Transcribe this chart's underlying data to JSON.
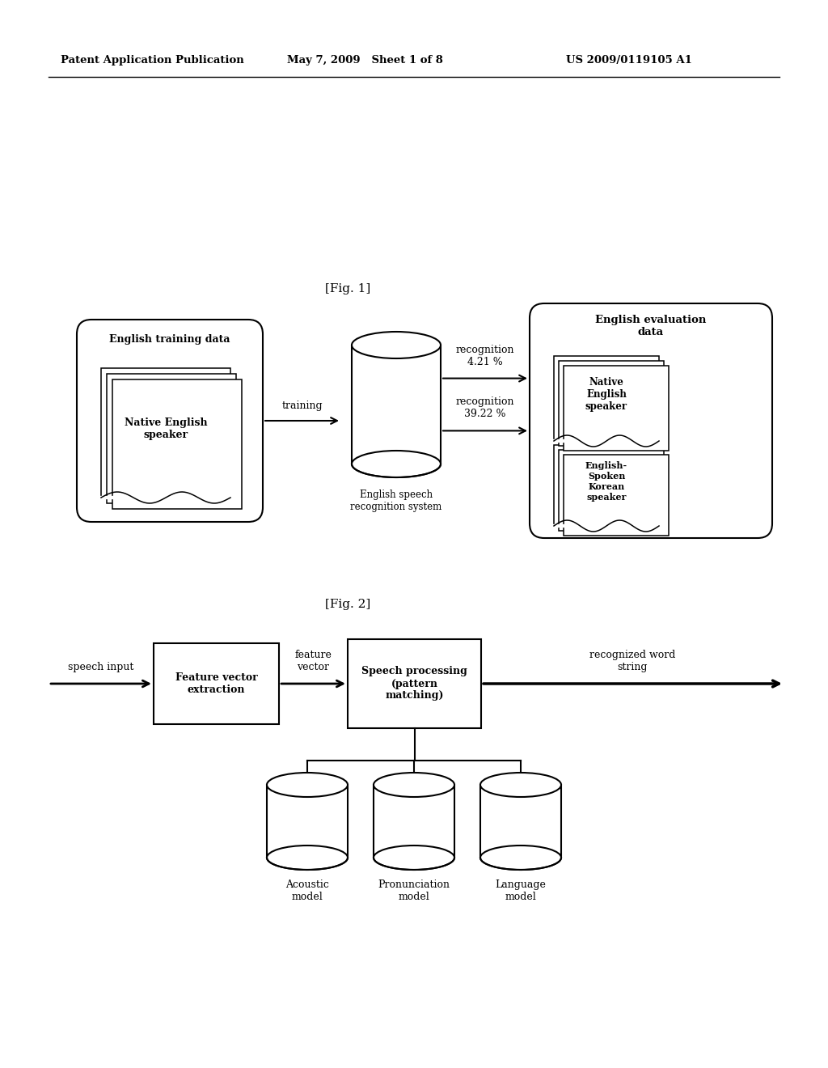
{
  "header_left": "Patent Application Publication",
  "header_mid": "May 7, 2009   Sheet 1 of 8",
  "header_right": "US 2009/0119105 A1",
  "fig1_label": "[Fig. 1]",
  "fig2_label": "[Fig. 2]",
  "fig1": {
    "training_data_title": "English training data",
    "training_data_sub": "Native English\nspeaker",
    "training_arrow_label": "training",
    "db_label": "English speech\nrecognition system",
    "recog1_label": "recognition\n4.21 %",
    "recog2_label": "recognition\n39.22 %",
    "eval_data_title": "English evaluation\ndata",
    "native_label": "Native\nEnglish\nspeaker",
    "korean_label": "English-\nSpoken\nKorean\nspeaker"
  },
  "fig2": {
    "speech_input_label": "speech input",
    "fv_box_label": "Feature vector\nextraction",
    "fv_arrow_label": "feature\nvector",
    "sp_box_label": "Speech processing\n(pattern\nmatching)",
    "output_arrow_label": "recognized word\nstring",
    "acoustic_label": "Acoustic\nmodel",
    "pronunciation_label": "Pronunciation\nmodel",
    "language_label": "Language\nmodel"
  },
  "bg_color": "#ffffff",
  "font_family": "DejaVu Serif"
}
